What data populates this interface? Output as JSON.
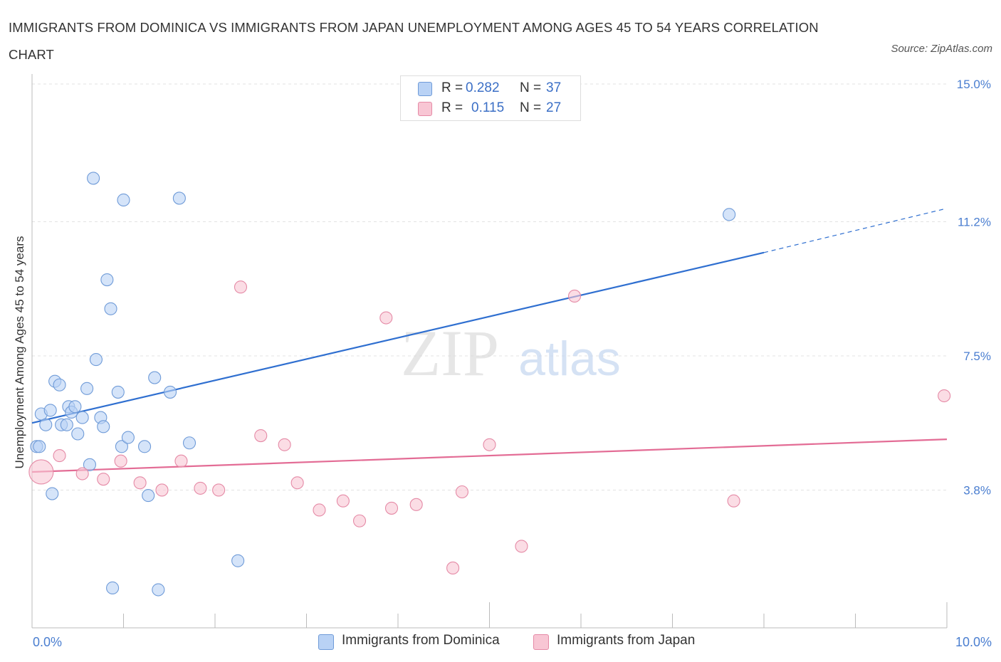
{
  "title": "IMMIGRANTS FROM DOMINICA VS IMMIGRANTS FROM JAPAN UNEMPLOYMENT AMONG AGES 45 TO 54 YEARS CORRELATION CHART",
  "source": "Source: ZipAtlas.com",
  "watermark": {
    "zip": "ZIP",
    "atlas": "atlas"
  },
  "legend_top": {
    "r_label": "R =",
    "n_label": "N =",
    "dominica": {
      "r": "0.282",
      "n": "37"
    },
    "japan": {
      "r": "0.115",
      "n": "27"
    }
  },
  "colors": {
    "dominica_fill": "#b9d2f5",
    "dominica_stroke": "#6f9bd8",
    "dominica_line": "#2f6fd0",
    "japan_fill": "#f8c6d4",
    "japan_stroke": "#e58aa6",
    "japan_line": "#e36c95",
    "tick_label": "#4a7ed0",
    "grid": "#e3e3e3"
  },
  "chart_data": {
    "type": "scatter",
    "title": "IMMIGRANTS FROM DOMINICA VS IMMIGRANTS FROM JAPAN UNEMPLOYMENT AMONG AGES 45 TO 54 YEARS CORRELATION CHART",
    "xlabel": "",
    "ylabel": "Unemployment Among Ages 45 to 54 years",
    "xlim": [
      0,
      10
    ],
    "ylim": [
      0,
      15
    ],
    "x_tick_labels": [
      {
        "value": 0,
        "label": "0.0%"
      },
      {
        "value": 10,
        "label": "10.0%"
      }
    ],
    "y_tick_labels": [
      {
        "value": 3.8,
        "label": "3.8%"
      },
      {
        "value": 7.5,
        "label": "7.5%"
      },
      {
        "value": 11.2,
        "label": "11.2%"
      },
      {
        "value": 15.0,
        "label": "15.0%"
      }
    ],
    "grid": true,
    "legend_position": "bottom",
    "series": [
      {
        "name": "Immigrants from Dominica",
        "r": 0.282,
        "n": 37,
        "trend": {
          "x0": 0.0,
          "y0": 5.65,
          "x1": 8.0,
          "y1": 10.35,
          "dash_to_x": 10.0,
          "dash_to_y": 11.55
        },
        "points": [
          {
            "x": 0.05,
            "y": 5.0
          },
          {
            "x": 0.08,
            "y": 5.0
          },
          {
            "x": 0.1,
            "y": 5.9
          },
          {
            "x": 0.15,
            "y": 5.6
          },
          {
            "x": 0.2,
            "y": 6.0
          },
          {
            "x": 0.22,
            "y": 3.7
          },
          {
            "x": 0.25,
            "y": 6.8
          },
          {
            "x": 0.3,
            "y": 6.7
          },
          {
            "x": 0.32,
            "y": 5.6
          },
          {
            "x": 0.38,
            "y": 5.6
          },
          {
            "x": 0.4,
            "y": 6.1
          },
          {
            "x": 0.43,
            "y": 5.95
          },
          {
            "x": 0.47,
            "y": 6.1
          },
          {
            "x": 0.5,
            "y": 5.35
          },
          {
            "x": 0.55,
            "y": 5.8
          },
          {
            "x": 0.6,
            "y": 6.6
          },
          {
            "x": 0.63,
            "y": 4.5
          },
          {
            "x": 0.67,
            "y": 12.4
          },
          {
            "x": 0.7,
            "y": 7.4
          },
          {
            "x": 0.75,
            "y": 5.8
          },
          {
            "x": 0.78,
            "y": 5.55
          },
          {
            "x": 0.82,
            "y": 9.6
          },
          {
            "x": 0.86,
            "y": 8.8
          },
          {
            "x": 0.88,
            "y": 1.1
          },
          {
            "x": 0.94,
            "y": 6.5
          },
          {
            "x": 0.98,
            "y": 5.0
          },
          {
            "x": 1.0,
            "y": 11.8
          },
          {
            "x": 1.05,
            "y": 5.25
          },
          {
            "x": 1.23,
            "y": 5.0
          },
          {
            "x": 1.27,
            "y": 3.65
          },
          {
            "x": 1.34,
            "y": 6.9
          },
          {
            "x": 1.38,
            "y": 1.05
          },
          {
            "x": 1.51,
            "y": 6.5
          },
          {
            "x": 1.61,
            "y": 11.85
          },
          {
            "x": 1.72,
            "y": 5.1
          },
          {
            "x": 2.25,
            "y": 1.85
          },
          {
            "x": 7.62,
            "y": 11.4
          }
        ]
      },
      {
        "name": "Immigrants from Japan",
        "r": 0.115,
        "n": 27,
        "trend": {
          "x0": 0.0,
          "y0": 4.3,
          "x1": 10.0,
          "y1": 5.2
        },
        "points": [
          {
            "x": 0.1,
            "y": 4.3,
            "size": "large"
          },
          {
            "x": 0.3,
            "y": 4.75
          },
          {
            "x": 0.55,
            "y": 4.25
          },
          {
            "x": 0.78,
            "y": 4.1
          },
          {
            "x": 0.97,
            "y": 4.6
          },
          {
            "x": 1.18,
            "y": 4.0
          },
          {
            "x": 1.42,
            "y": 3.8
          },
          {
            "x": 1.63,
            "y": 4.6
          },
          {
            "x": 1.84,
            "y": 3.85
          },
          {
            "x": 2.04,
            "y": 3.8
          },
          {
            "x": 2.28,
            "y": 9.4
          },
          {
            "x": 2.5,
            "y": 5.3
          },
          {
            "x": 2.76,
            "y": 5.05
          },
          {
            "x": 2.9,
            "y": 4.0
          },
          {
            "x": 3.14,
            "y": 3.25
          },
          {
            "x": 3.4,
            "y": 3.5
          },
          {
            "x": 3.58,
            "y": 2.95
          },
          {
            "x": 3.87,
            "y": 8.55
          },
          {
            "x": 3.93,
            "y": 3.3
          },
          {
            "x": 4.2,
            "y": 3.4
          },
          {
            "x": 4.6,
            "y": 1.65
          },
          {
            "x": 4.7,
            "y": 3.75
          },
          {
            "x": 5.0,
            "y": 5.05
          },
          {
            "x": 5.35,
            "y": 2.25
          },
          {
            "x": 5.93,
            "y": 9.15
          },
          {
            "x": 7.67,
            "y": 3.5
          },
          {
            "x": 9.97,
            "y": 6.4
          }
        ]
      }
    ]
  }
}
